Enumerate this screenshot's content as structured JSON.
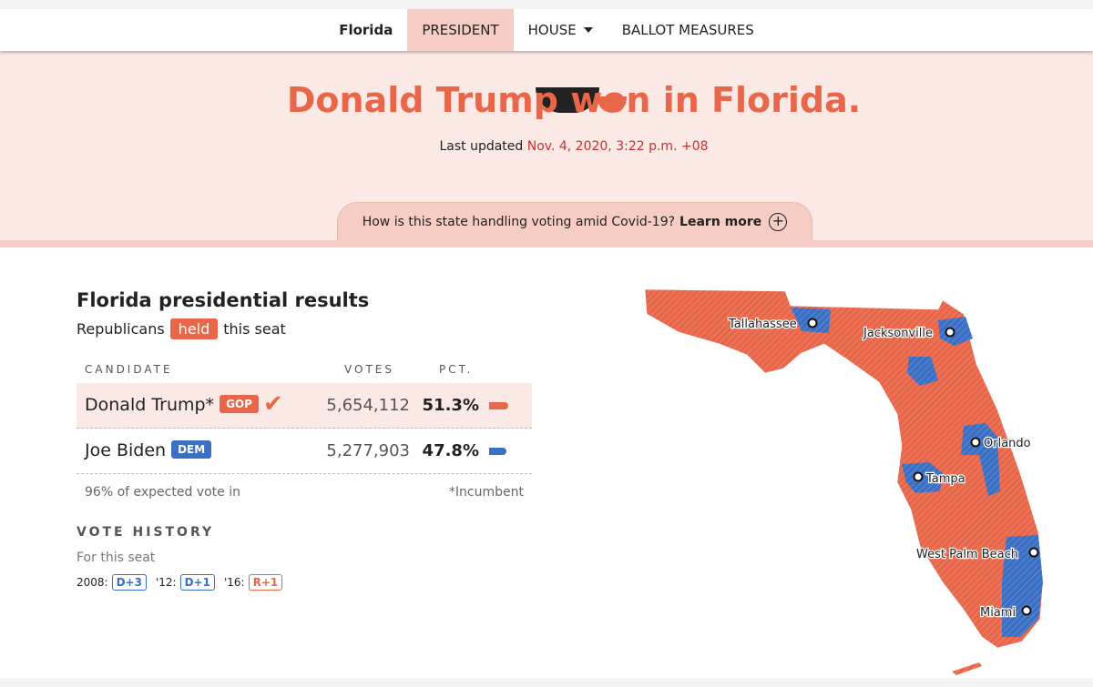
{
  "nav": {
    "state": "Florida",
    "items": [
      {
        "label": "PRESIDENT",
        "active": true
      },
      {
        "label": "HOUSE",
        "dropdown": true
      },
      {
        "label": "BALLOT MEASURES"
      }
    ]
  },
  "hero": {
    "headline": "Donald Trump won in Florida.",
    "updated_label": "Last updated",
    "updated_time": "Nov. 4, 2020, 3:22 p.m. +08",
    "covid_text": "How is this state handling voting amid Covid-19?",
    "covid_link": "Learn more",
    "plus_icon": "+"
  },
  "results": {
    "title": "Florida presidential results",
    "held_pre": "Republicans",
    "held_pill": "held",
    "held_post": "this seat",
    "headers": {
      "candidate": "CANDIDATE",
      "votes": "VOTES",
      "pct": "PCT."
    },
    "candidates": [
      {
        "name": "Donald Trump*",
        "party": "GOP",
        "votes": "5,654,112",
        "pct": "51.3%",
        "pct_value": 51.3,
        "color": "#e8674a",
        "winner": true,
        "check": "✔"
      },
      {
        "name": "Joe Biden",
        "party": "DEM",
        "votes": "5,277,903",
        "pct": "47.8%",
        "pct_value": 47.8,
        "color": "#3a6fc4"
      }
    ],
    "expected": "96% of expected vote in",
    "incumbent": "*Incumbent",
    "history_title": "VOTE HISTORY",
    "history_sub": "For this seat",
    "history": [
      {
        "year": "2008:",
        "val": "D+3",
        "color": "#3a6fc4"
      },
      {
        "year": "'12:",
        "val": "D+1",
        "color": "#3a6fc4"
      },
      {
        "year": "'16:",
        "val": "R+1",
        "color": "#e8674a"
      }
    ]
  },
  "map": {
    "cities": [
      "Tallahassee",
      "Jacksonville",
      "Orlando",
      "Tampa",
      "West Palm Beach",
      "Miami"
    ],
    "colors": {
      "gop": "#e8674a",
      "dem": "#3a6fc4"
    }
  }
}
